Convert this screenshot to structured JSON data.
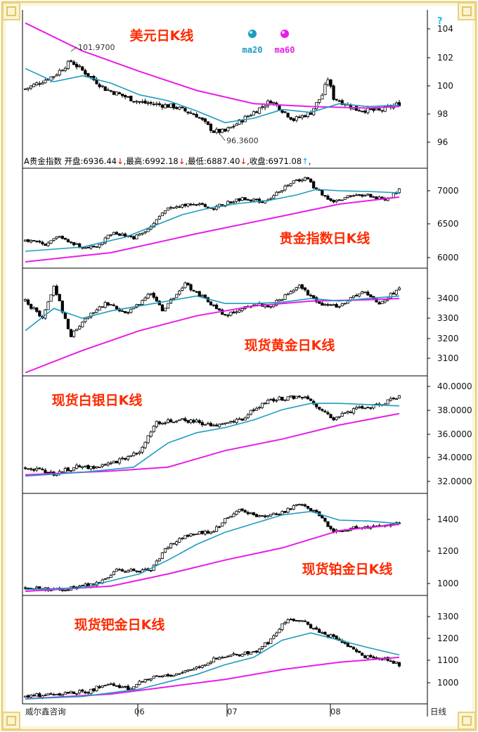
{
  "header": {
    "name": "A贵金指数",
    "open_label": "开盘:",
    "open": "6936.44",
    "open_arrow": "↓",
    "high_label": "最高:",
    "high": "6992.18",
    "high_arrow": "↓",
    "low_label": "最低:",
    "low": "6887.40",
    "low_arrow": "↓",
    "close_label": "收盘:",
    "close": "6971.08",
    "close_arrow": "↑"
  },
  "footer": {
    "source": "威尔鑫咨询",
    "period": "日线",
    "months": [
      "06",
      "07",
      "08"
    ]
  },
  "colors": {
    "title": "#ff2a00",
    "ma20": "#1e9bc0",
    "ma60": "#e81de8",
    "frame": "#000000",
    "border_gold": "#e8d27a"
  },
  "chart_data": [
    {
      "type": "candlestick",
      "title": "美元日K线",
      "legend": [
        "ma20",
        "ma60"
      ],
      "y_ticks": [
        "104",
        "102",
        "100",
        "98",
        "96"
      ],
      "ylim": [
        95,
        104.8
      ],
      "start": 99.4,
      "end": 98.4,
      "anchors": [
        [
          0,
          99.4
        ],
        [
          10,
          100.3
        ],
        [
          16,
          101.3
        ],
        [
          28,
          99.4
        ],
        [
          40,
          98.5
        ],
        [
          52,
          98.2
        ],
        [
          60,
          97.6
        ],
        [
          66,
          96.5
        ],
        [
          70,
          96.5
        ],
        [
          76,
          97.3
        ],
        [
          86,
          98.6
        ],
        [
          94,
          97.3
        ],
        [
          100,
          97.8
        ],
        [
          104,
          99.0
        ],
        [
          106,
          100.1
        ],
        [
          108,
          98.8
        ],
        [
          116,
          98.0
        ],
        [
          124,
          97.9
        ],
        [
          131,
          98.4
        ]
      ],
      "ma20": [
        [
          0,
          100.8
        ],
        [
          10,
          99.9
        ],
        [
          20,
          100.3
        ],
        [
          30,
          99.8
        ],
        [
          40,
          99.0
        ],
        [
          50,
          98.6
        ],
        [
          60,
          97.9
        ],
        [
          70,
          97.1
        ],
        [
          80,
          97.4
        ],
        [
          90,
          98.0
        ],
        [
          100,
          97.8
        ],
        [
          110,
          98.4
        ],
        [
          120,
          98.2
        ],
        [
          131,
          98.3
        ]
      ],
      "ma60": [
        [
          0,
          103.9
        ],
        [
          20,
          102.0
        ],
        [
          40,
          100.6
        ],
        [
          60,
          99.3
        ],
        [
          80,
          98.4
        ],
        [
          100,
          98.2
        ],
        [
          120,
          98.1
        ],
        [
          131,
          98.2
        ]
      ],
      "annotations": [
        {
          "text": "101.9700",
          "x": 16,
          "y": 101.97
        },
        {
          "text": "96.3600",
          "x": 68,
          "y": 96.36
        }
      ]
    },
    {
      "type": "candlestick",
      "title": "贵金指数日K线",
      "legend": [],
      "y_ticks": [
        "7000",
        "6500",
        "6000"
      ],
      "ylim": [
        5870,
        7270
      ],
      "start": 6250,
      "end": 6971,
      "anchors": [
        [
          0,
          6250
        ],
        [
          8,
          6200
        ],
        [
          12,
          6320
        ],
        [
          20,
          6150
        ],
        [
          26,
          6180
        ],
        [
          30,
          6350
        ],
        [
          38,
          6300
        ],
        [
          44,
          6450
        ],
        [
          50,
          6720
        ],
        [
          58,
          6780
        ],
        [
          66,
          6720
        ],
        [
          76,
          6850
        ],
        [
          84,
          6800
        ],
        [
          92,
          7050
        ],
        [
          98,
          7150
        ],
        [
          102,
          6980
        ],
        [
          108,
          6800
        ],
        [
          114,
          6880
        ],
        [
          120,
          6900
        ],
        [
          126,
          6820
        ],
        [
          131,
          6970
        ]
      ],
      "ma20": [
        [
          0,
          6100
        ],
        [
          20,
          6160
        ],
        [
          35,
          6300
        ],
        [
          45,
          6460
        ],
        [
          55,
          6620
        ],
        [
          65,
          6720
        ],
        [
          75,
          6780
        ],
        [
          85,
          6820
        ],
        [
          95,
          6900
        ],
        [
          102,
          6980
        ],
        [
          110,
          6960
        ],
        [
          120,
          6950
        ],
        [
          131,
          6930
        ]
      ],
      "ma60": [
        [
          0,
          5950
        ],
        [
          30,
          6080
        ],
        [
          60,
          6350
        ],
        [
          90,
          6600
        ],
        [
          110,
          6770
        ],
        [
          131,
          6870
        ]
      ]
    },
    {
      "type": "candlestick",
      "title": "现货黄金日K线",
      "legend": [],
      "y_ticks": [
        "3400",
        "3300",
        "3200",
        "3100"
      ],
      "ylim": [
        3040,
        3470
      ],
      "start": 3340,
      "end": 3390,
      "anchors": [
        [
          0,
          3340
        ],
        [
          6,
          3270
        ],
        [
          10,
          3400
        ],
        [
          16,
          3200
        ],
        [
          22,
          3280
        ],
        [
          28,
          3330
        ],
        [
          36,
          3290
        ],
        [
          44,
          3370
        ],
        [
          48,
          3300
        ],
        [
          56,
          3410
        ],
        [
          66,
          3320
        ],
        [
          70,
          3280
        ],
        [
          80,
          3330
        ],
        [
          86,
          3320
        ],
        [
          96,
          3400
        ],
        [
          104,
          3320
        ],
        [
          110,
          3320
        ],
        [
          118,
          3380
        ],
        [
          124,
          3330
        ],
        [
          131,
          3390
        ]
      ],
      "ma20": [
        [
          0,
          3220
        ],
        [
          10,
          3310
        ],
        [
          20,
          3270
        ],
        [
          30,
          3300
        ],
        [
          40,
          3320
        ],
        [
          50,
          3340
        ],
        [
          60,
          3360
        ],
        [
          70,
          3330
        ],
        [
          80,
          3330
        ],
        [
          90,
          3335
        ],
        [
          100,
          3350
        ],
        [
          110,
          3340
        ],
        [
          120,
          3350
        ],
        [
          131,
          3360
        ]
      ],
      "ma60": [
        [
          0,
          3050
        ],
        [
          20,
          3140
        ],
        [
          40,
          3220
        ],
        [
          60,
          3280
        ],
        [
          80,
          3320
        ],
        [
          100,
          3340
        ],
        [
          120,
          3345
        ],
        [
          131,
          3350
        ]
      ]
    },
    {
      "type": "candlestick",
      "title": "现货白银日K线",
      "legend": [],
      "y_ticks": [
        "40.0000",
        "38.0000",
        "36.0000",
        "34.0000",
        "32.0000"
      ],
      "ylim": [
        31.0,
        40.1
      ],
      "start": 33.0,
      "end": 38.6,
      "anchors": [
        [
          0,
          33.0
        ],
        [
          10,
          32.5
        ],
        [
          18,
          33.0
        ],
        [
          26,
          33.0
        ],
        [
          34,
          33.6
        ],
        [
          40,
          34.3
        ],
        [
          46,
          36.5
        ],
        [
          56,
          36.7
        ],
        [
          66,
          36.3
        ],
        [
          76,
          36.8
        ],
        [
          80,
          37.5
        ],
        [
          86,
          38.3
        ],
        [
          94,
          38.5
        ],
        [
          98,
          38.6
        ],
        [
          104,
          37.5
        ],
        [
          108,
          36.8
        ],
        [
          116,
          37.6
        ],
        [
          124,
          37.9
        ],
        [
          131,
          38.6
        ]
      ],
      "ma20": [
        [
          0,
          32.3
        ],
        [
          20,
          32.6
        ],
        [
          38,
          33.0
        ],
        [
          50,
          34.9
        ],
        [
          60,
          35.7
        ],
        [
          70,
          36.1
        ],
        [
          80,
          36.7
        ],
        [
          90,
          37.5
        ],
        [
          100,
          38.0
        ],
        [
          110,
          38.0
        ],
        [
          131,
          37.8
        ]
      ],
      "ma60": [
        [
          0,
          32.4
        ],
        [
          30,
          32.7
        ],
        [
          50,
          33.0
        ],
        [
          70,
          34.3
        ],
        [
          90,
          35.2
        ],
        [
          110,
          36.3
        ],
        [
          131,
          37.2
        ]
      ]
    },
    {
      "type": "candlestick",
      "title": "现货铂金日K线",
      "legend": [],
      "y_ticks": [
        "1400",
        "1200",
        "1000"
      ],
      "ylim": [
        930,
        1510
      ],
      "start": 970,
      "end": 1345,
      "anchors": [
        [
          0,
          970
        ],
        [
          14,
          960
        ],
        [
          22,
          985
        ],
        [
          26,
          1000
        ],
        [
          32,
          1070
        ],
        [
          44,
          1070
        ],
        [
          50,
          1210
        ],
        [
          58,
          1280
        ],
        [
          66,
          1300
        ],
        [
          74,
          1420
        ],
        [
          82,
          1380
        ],
        [
          90,
          1400
        ],
        [
          96,
          1460
        ],
        [
          102,
          1400
        ],
        [
          108,
          1290
        ],
        [
          116,
          1320
        ],
        [
          124,
          1320
        ],
        [
          131,
          1345
        ]
      ],
      "ma20": [
        [
          0,
          960
        ],
        [
          20,
          970
        ],
        [
          40,
          1050
        ],
        [
          50,
          1130
        ],
        [
          60,
          1220
        ],
        [
          70,
          1290
        ],
        [
          80,
          1340
        ],
        [
          90,
          1390
        ],
        [
          100,
          1410
        ],
        [
          110,
          1360
        ],
        [
          120,
          1355
        ],
        [
          131,
          1340
        ]
      ],
      "ma60": [
        [
          0,
          950
        ],
        [
          30,
          980
        ],
        [
          50,
          1050
        ],
        [
          70,
          1130
        ],
        [
          90,
          1200
        ],
        [
          110,
          1300
        ],
        [
          131,
          1335
        ]
      ]
    },
    {
      "type": "candlestick",
      "title": "现货钯金日K线",
      "legend": [],
      "y_ticks": [
        "1300",
        "1200",
        "1100",
        "1000"
      ],
      "ylim": [
        940,
        1380
      ],
      "start": 970,
      "end": 1100,
      "anchors": [
        [
          0,
          970
        ],
        [
          14,
          985
        ],
        [
          22,
          990
        ],
        [
          28,
          1020
        ],
        [
          36,
          1000
        ],
        [
          42,
          1040
        ],
        [
          52,
          1060
        ],
        [
          60,
          1090
        ],
        [
          66,
          1120
        ],
        [
          74,
          1140
        ],
        [
          80,
          1150
        ],
        [
          86,
          1200
        ],
        [
          92,
          1290
        ],
        [
          98,
          1270
        ],
        [
          104,
          1230
        ],
        [
          110,
          1200
        ],
        [
          116,
          1150
        ],
        [
          122,
          1120
        ],
        [
          126,
          1130
        ],
        [
          131,
          1100
        ]
      ],
      "ma20": [
        [
          0,
          960
        ],
        [
          20,
          970
        ],
        [
          40,
          1000
        ],
        [
          60,
          1060
        ],
        [
          70,
          1100
        ],
        [
          80,
          1130
        ],
        [
          90,
          1200
        ],
        [
          100,
          1230
        ],
        [
          110,
          1200
        ],
        [
          120,
          1170
        ],
        [
          131,
          1140
        ]
      ],
      "ma60": [
        [
          0,
          960
        ],
        [
          30,
          980
        ],
        [
          50,
          1010
        ],
        [
          70,
          1040
        ],
        [
          90,
          1080
        ],
        [
          110,
          1110
        ],
        [
          131,
          1130
        ]
      ]
    }
  ]
}
